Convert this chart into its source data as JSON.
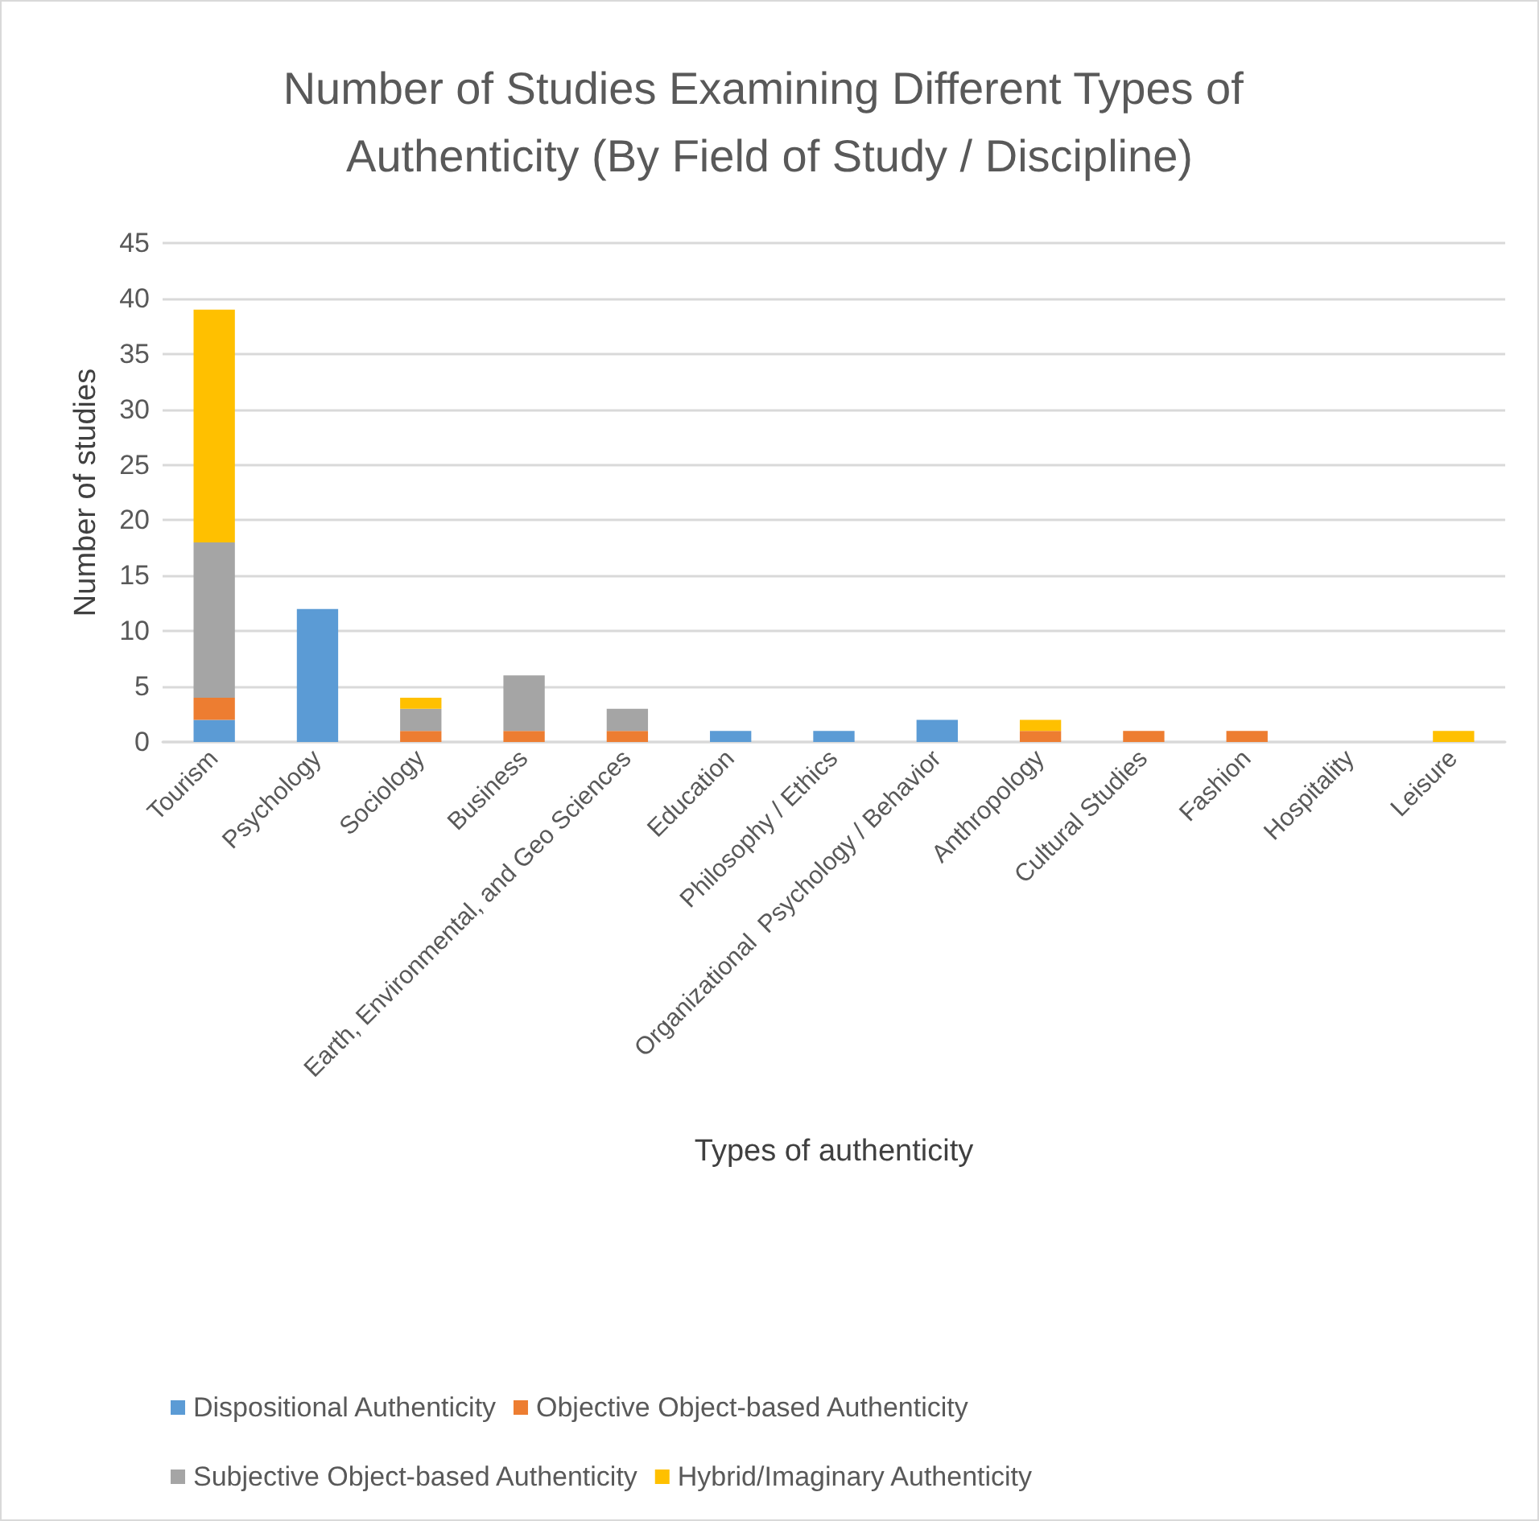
{
  "chart_data": {
    "type": "bar",
    "title": "Number of Studies Examining Different Types of Authenticity (By Field of Study / Discipline)",
    "xlabel": "Types of authenticity",
    "ylabel": "Number of studies",
    "categories": [
      "Tourism",
      "Psychology",
      "Sociology",
      "Business",
      "Earth, Environmental, and Geo Sciences",
      "Education",
      "Philosophy / Ethics",
      "Organizational  Psychology / Behavior",
      "Anthropology",
      "Cultural Studies",
      "Fashion",
      "Hospitality",
      "Leisure"
    ],
    "series": [
      {
        "name": "Dispositional Authenticity",
        "color": "#5b9bd5",
        "values": [
          2,
          12,
          0,
          0,
          0,
          1,
          1,
          2,
          0,
          0,
          0,
          0,
          0
        ]
      },
      {
        "name": "Objective Object-based Authenticity",
        "color": "#ed7d31",
        "values": [
          2,
          0,
          1,
          1,
          1,
          0,
          0,
          0,
          1,
          1,
          1,
          0,
          0
        ]
      },
      {
        "name": "Subjective Object-based Authenticity",
        "color": "#a5a5a5",
        "values": [
          14,
          0,
          2,
          5,
          2,
          0,
          0,
          0,
          0,
          0,
          0,
          0,
          0
        ]
      },
      {
        "name": "Hybrid/Imaginary Authenticity",
        "color": "#ffc000",
        "values": [
          21,
          0,
          1,
          0,
          0,
          0,
          0,
          0,
          1,
          0,
          0,
          0,
          1
        ]
      }
    ],
    "stacked": true,
    "ylim": [
      0,
      45
    ],
    "yticks": [
      0,
      5,
      10,
      15,
      20,
      25,
      30,
      35,
      40,
      45
    ],
    "grid": "y",
    "legend": "bottom"
  }
}
